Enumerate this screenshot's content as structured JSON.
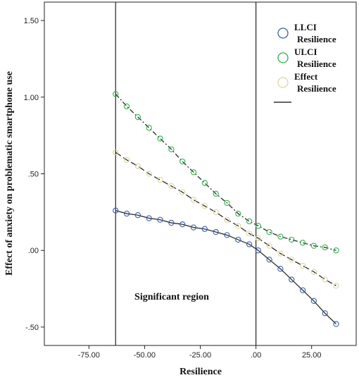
{
  "chart_data": {
    "type": "line",
    "xlabel": "Resilience",
    "ylabel": "Effect of anxiety on problematic smartphone use",
    "xlim": [
      -95,
      45
    ],
    "ylim": [
      -0.62,
      1.62
    ],
    "x_ticks": [
      -75,
      -50,
      -25,
      0,
      25
    ],
    "x_tick_labels": [
      "-75.00",
      "-50.00",
      "-25.00",
      ".00",
      "25.00"
    ],
    "y_ticks": [
      -0.5,
      0,
      0.5,
      1.0,
      1.5
    ],
    "y_tick_labels": [
      "-.50",
      ".00",
      ".50",
      "1.00",
      "1.50"
    ],
    "grid": false,
    "legend_position": "top-right",
    "vertical_lines": [
      -63,
      0
    ],
    "annotation": "Significant region",
    "x": [
      -63,
      -58,
      -53,
      -48,
      -43,
      -38,
      -33,
      -28,
      -23,
      -18,
      -13,
      -8,
      -3,
      1,
      6,
      11,
      16,
      21,
      26,
      31,
      36
    ],
    "series": [
      {
        "name": "LLCI Resilience",
        "color": "#3b5fa8",
        "dash": "",
        "values": [
          0.26,
          0.24,
          0.23,
          0.21,
          0.2,
          0.18,
          0.17,
          0.15,
          0.14,
          0.12,
          0.1,
          0.07,
          0.04,
          0.0,
          -0.06,
          -0.12,
          -0.19,
          -0.26,
          -0.33,
          -0.41,
          -0.48
        ]
      },
      {
        "name": "ULCI Resilience",
        "color": "#2db34a",
        "dash": "7,3,2,3",
        "values": [
          1.02,
          0.94,
          0.87,
          0.8,
          0.73,
          0.66,
          0.58,
          0.51,
          0.44,
          0.37,
          0.31,
          0.24,
          0.19,
          0.16,
          0.12,
          0.09,
          0.07,
          0.05,
          0.03,
          0.02,
          0.0
        ]
      },
      {
        "name": "Effect Resilience",
        "color": "#ddd59a",
        "dash": "9,4",
        "values": [
          0.64,
          0.59,
          0.55,
          0.5,
          0.46,
          0.42,
          0.38,
          0.33,
          0.29,
          0.25,
          0.2,
          0.16,
          0.11,
          0.08,
          0.03,
          -0.02,
          -0.06,
          -0.1,
          -0.14,
          -0.19,
          -0.23
        ]
      }
    ],
    "legend": [
      {
        "line1": "LLCI",
        "line2": "Resilience",
        "color": "#3b5fa8"
      },
      {
        "line1": "ULCI",
        "line2": "Resilience",
        "color": "#2db34a"
      },
      {
        "line1": "Effect",
        "line2": "Resilience",
        "color": "#ddd59a"
      }
    ]
  }
}
